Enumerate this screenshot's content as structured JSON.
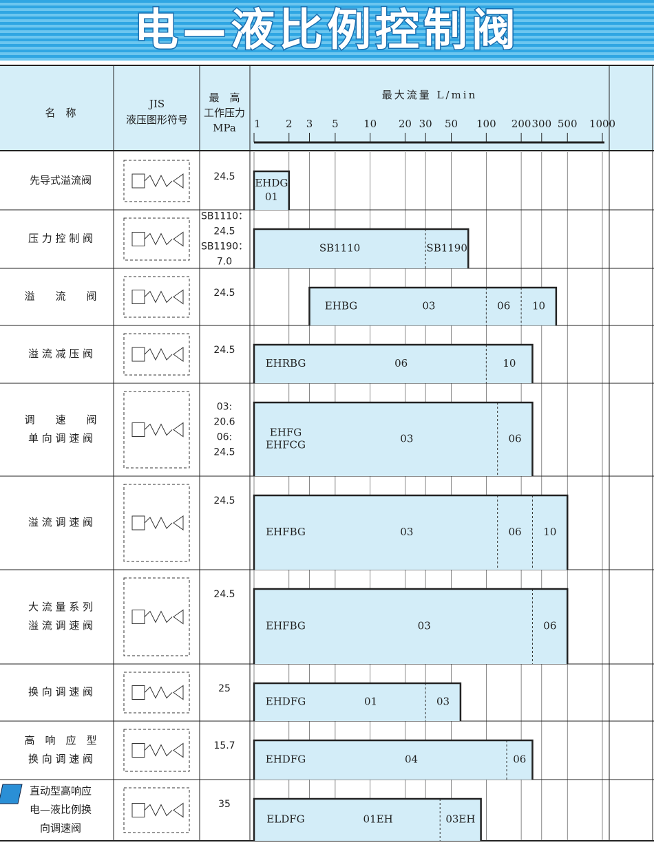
{
  "header": {
    "title": "电—液比例控制阀",
    "columns": {
      "name": "名　称",
      "symbol": [
        "JIS",
        "液压图形符号"
      ],
      "pressure": [
        "最　高",
        "工作压力",
        "MPa"
      ],
      "flow": "最大流量 L/min"
    }
  },
  "chart_data": {
    "type": "range-bar",
    "log": true,
    "color": "#d3edf8",
    "xlim": [
      1,
      1000
    ],
    "xticks": [
      1,
      2,
      3,
      5,
      10,
      20,
      30,
      50,
      100,
      200,
      300,
      500,
      1000
    ],
    "rows": [
      {
        "name": [
          "先导式溢流阀"
        ],
        "pressure": [
          "24.5"
        ],
        "model": [
          "EHDG"
        ],
        "min": 1,
        "segments": [
          {
            "label": "01",
            "max": 2
          }
        ]
      },
      {
        "name": [
          "压 力 控 制 阀"
        ],
        "pressure": [
          "SB1110：",
          "24.5",
          "SB1190：",
          "7.0"
        ],
        "min": 1,
        "segments": [
          {
            "label": "SB1110",
            "max": 30
          },
          {
            "label": "SB1190",
            "max": 70
          }
        ]
      },
      {
        "name": [
          "溢　　流　　阀"
        ],
        "pressure": [
          "24.5"
        ],
        "model": [
          "EHBG"
        ],
        "min": 3,
        "segments": [
          {
            "label": "03",
            "max": 100
          },
          {
            "label": "06",
            "max": 200
          },
          {
            "label": "10",
            "max": 400
          }
        ]
      },
      {
        "name": [
          "溢 流 减 压 阀"
        ],
        "pressure": [
          "24.5"
        ],
        "model": [
          "EHRBG"
        ],
        "min": 1,
        "segments": [
          {
            "label": "06",
            "max": 100
          },
          {
            "label": "10",
            "max": 250
          }
        ]
      },
      {
        "name": [
          "调　　速　　阀",
          "单 向 调 速 阀"
        ],
        "pressure": [
          "03:",
          "20.6",
          "06:",
          "24.5"
        ],
        "model": [
          "EHFG",
          "EHFCG"
        ],
        "min": 1,
        "segments": [
          {
            "label": "03",
            "max": 125
          },
          {
            "label": "06",
            "max": 250
          }
        ]
      },
      {
        "name": [
          "溢 流 调 速 阀"
        ],
        "pressure": [
          "24.5"
        ],
        "model": [
          "EHFBG"
        ],
        "min": 1,
        "segments": [
          {
            "label": "03",
            "max": 125
          },
          {
            "label": "06",
            "max": 250
          },
          {
            "label": "10",
            "max": 500
          }
        ]
      },
      {
        "name": [
          "大 流 量 系 列",
          "溢 流 调 速 阀"
        ],
        "pressure": [
          "24.5"
        ],
        "model": [
          "EHFBG"
        ],
        "min": 1,
        "segments": [
          {
            "label": "03",
            "max": 250
          },
          {
            "label": "06",
            "max": 500
          }
        ]
      },
      {
        "name": [
          "换 向 调 速 阀"
        ],
        "pressure": [
          "25"
        ],
        "model": [
          "EHDFG"
        ],
        "min": 1,
        "segments": [
          {
            "label": "01",
            "max": 30
          },
          {
            "label": "03",
            "max": 60
          }
        ]
      },
      {
        "name": [
          "高　响　应　型",
          "换 向 调 速 阀"
        ],
        "pressure": [
          "15.7"
        ],
        "model": [
          "EHDFG"
        ],
        "min": 1,
        "segments": [
          {
            "label": "04",
            "max": 150
          },
          {
            "label": "06",
            "max": 250
          }
        ]
      },
      {
        "name": [
          "直动型高响应",
          "电—液比例换",
          "向调速阀"
        ],
        "pressure": [
          "35"
        ],
        "model": [
          "ELDFG"
        ],
        "min": 1,
        "segments": [
          {
            "label": "01EH",
            "max": 40
          },
          {
            "label": "03EH",
            "max": 90
          }
        ]
      }
    ]
  }
}
